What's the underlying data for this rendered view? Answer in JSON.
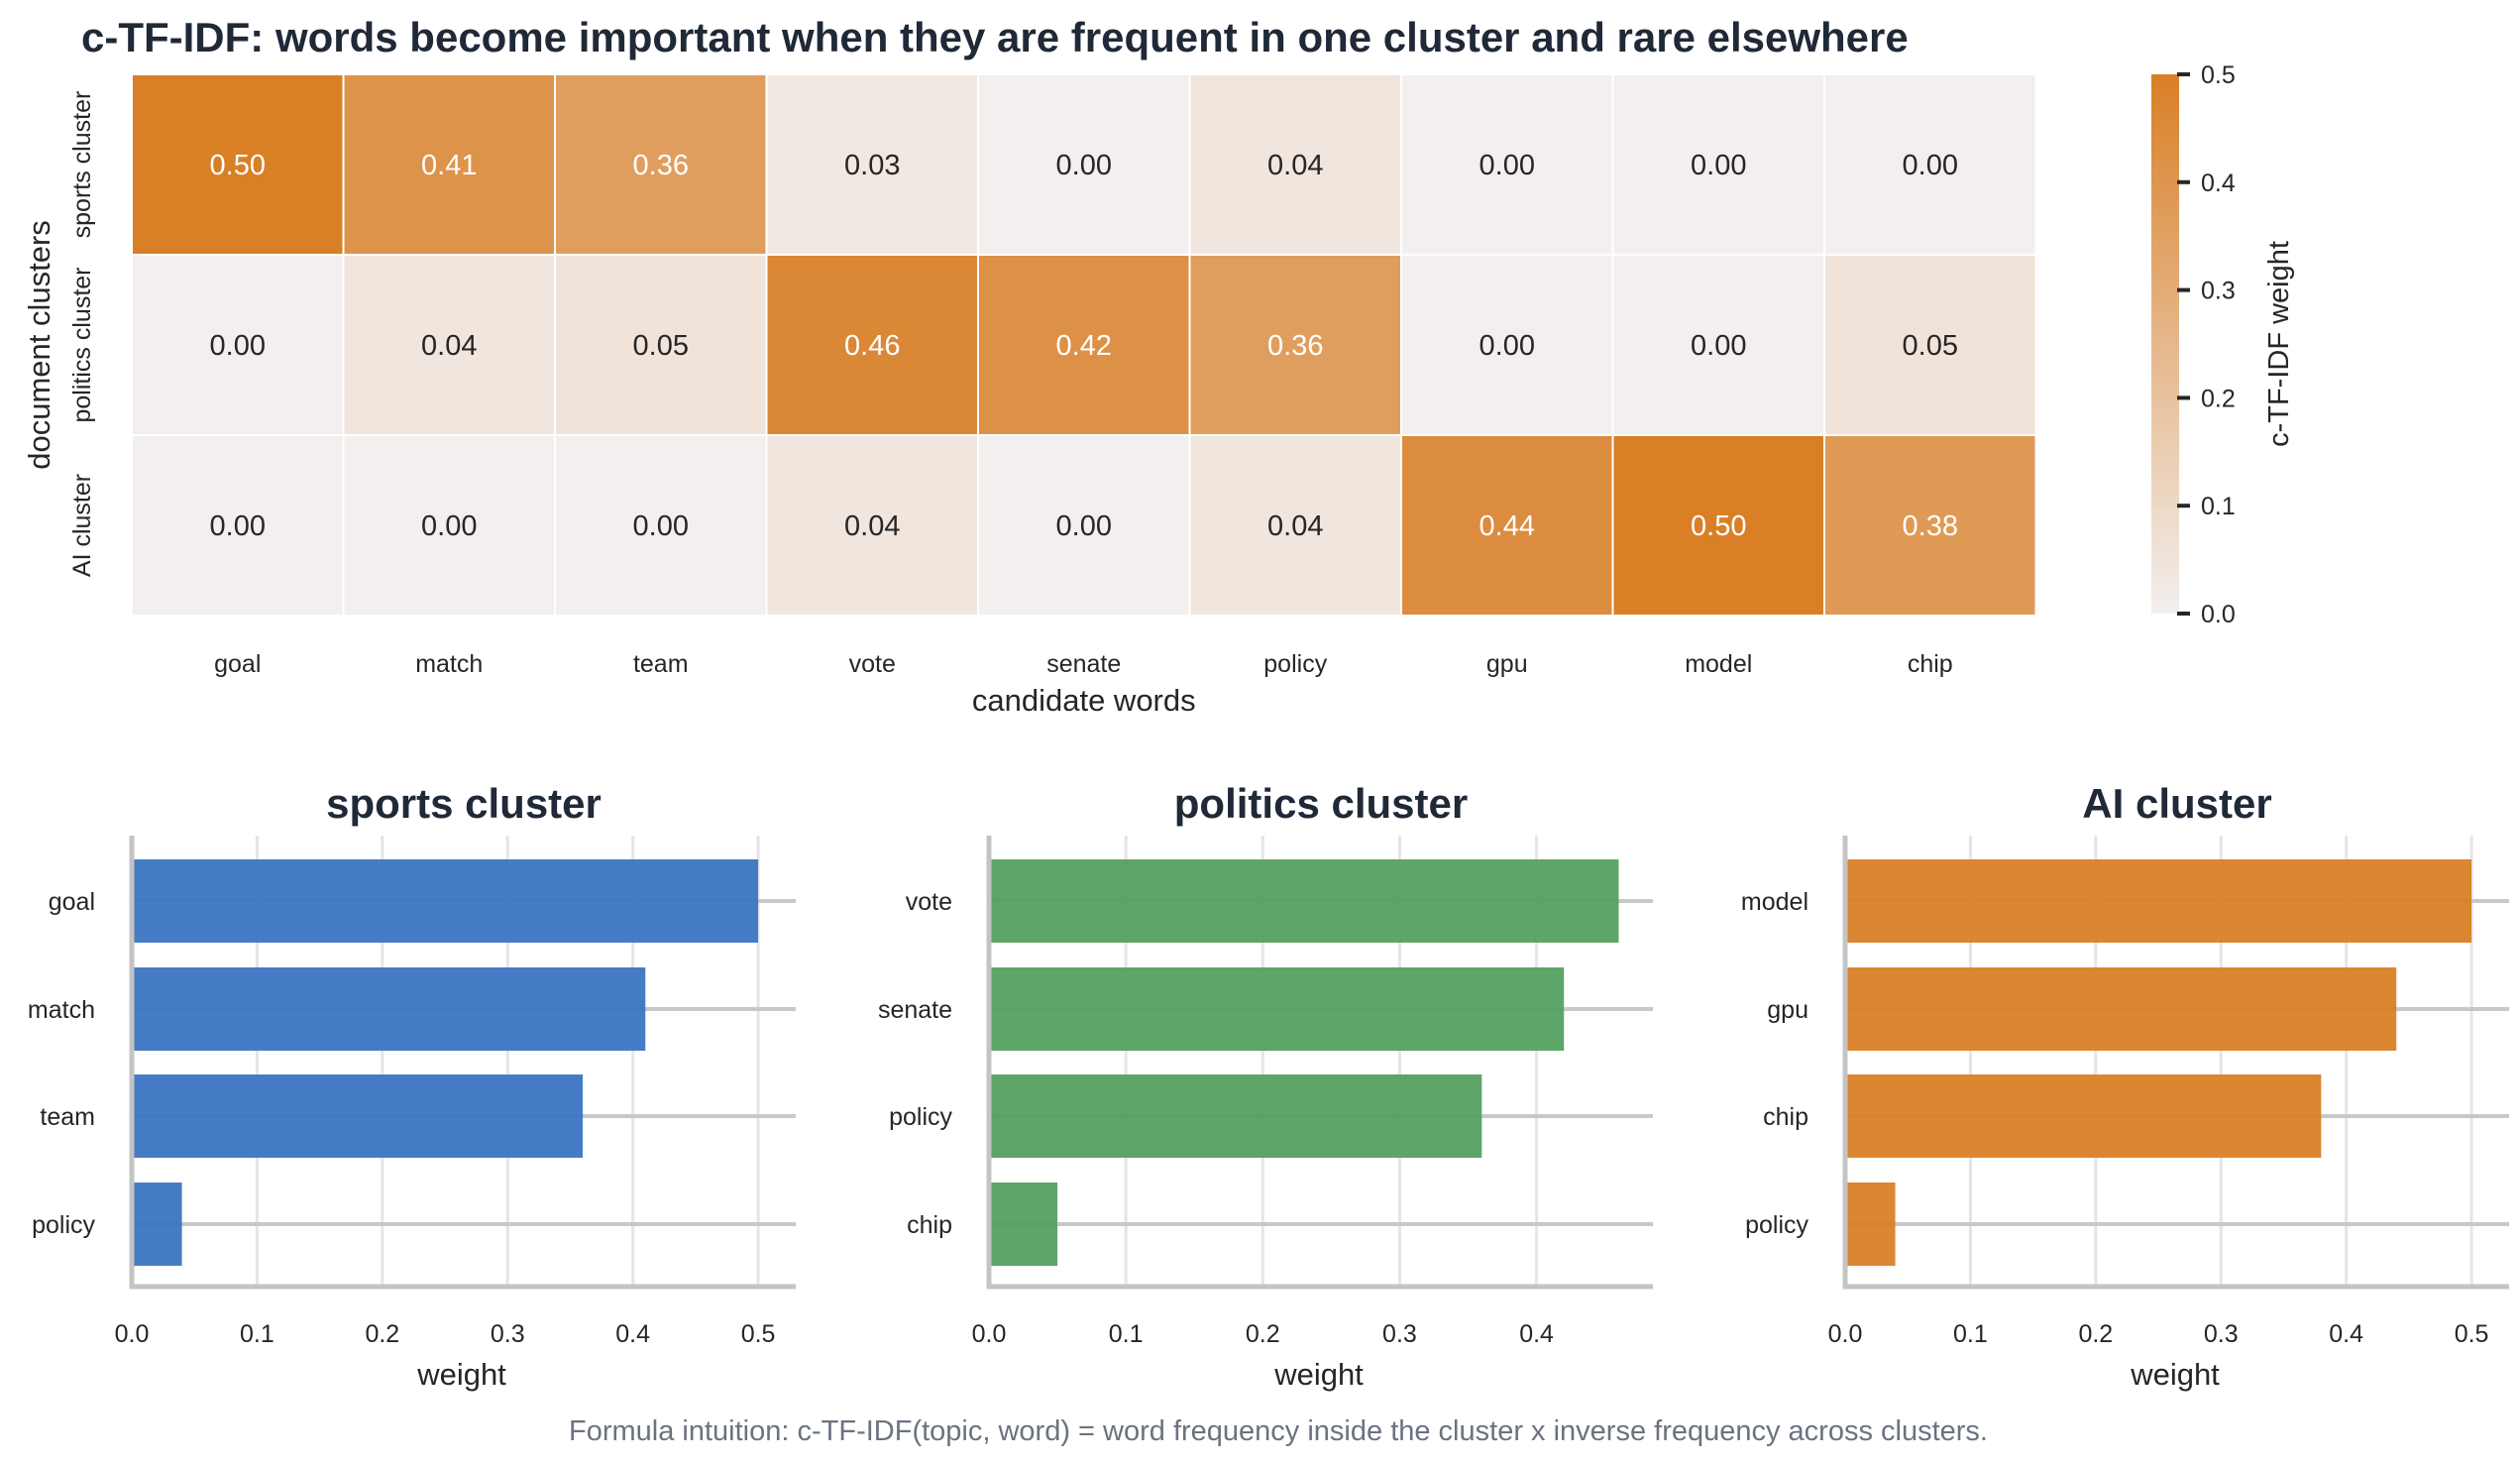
{
  "title": "c-TF-IDF: words become important when they are frequent in one cluster and rare elsewhere",
  "footer": "Formula intuition: c-TF-IDF(topic, word) = word frequency inside the cluster x inverse frequency across clusters.",
  "colors": {
    "heat_low": "#f2efee",
    "heat_high": "#d97f26",
    "sports": "#3c75c3",
    "politics": "#55a060",
    "ai": "#d97f26",
    "title": "#1f2937",
    "footer": "#6b7280"
  },
  "chart_data": [
    {
      "type": "heatmap",
      "xlabel": "candidate words",
      "ylabel": "document clusters",
      "x": [
        "goal",
        "match",
        "team",
        "vote",
        "senate",
        "policy",
        "gpu",
        "model",
        "chip"
      ],
      "y": [
        "sports cluster",
        "politics cluster",
        "AI cluster"
      ],
      "values": [
        [
          0.5,
          0.41,
          0.36,
          0.03,
          0.0,
          0.04,
          0.0,
          0.0,
          0.0
        ],
        [
          0.0,
          0.04,
          0.05,
          0.46,
          0.42,
          0.36,
          0.0,
          0.0,
          0.05
        ],
        [
          0.0,
          0.0,
          0.0,
          0.04,
          0.0,
          0.04,
          0.44,
          0.5,
          0.38
        ]
      ],
      "colorbar": {
        "label": "c-TF-IDF weight",
        "range": [
          0,
          0.5
        ],
        "ticks": [
          "0.0",
          "0.1",
          "0.2",
          "0.3",
          "0.4",
          "0.5"
        ]
      }
    },
    {
      "type": "bar",
      "orientation": "horizontal",
      "title": "sports cluster",
      "categories": [
        "goal",
        "match",
        "team",
        "policy"
      ],
      "values": [
        0.5,
        0.41,
        0.36,
        0.04
      ],
      "xlabel": "weight",
      "xlim": [
        0,
        0.53
      ],
      "xticks": [
        "0.0",
        "0.1",
        "0.2",
        "0.3",
        "0.4",
        "0.5"
      ],
      "color_key": "sports"
    },
    {
      "type": "bar",
      "orientation": "horizontal",
      "title": "politics cluster",
      "categories": [
        "vote",
        "senate",
        "policy",
        "chip"
      ],
      "values": [
        0.46,
        0.42,
        0.36,
        0.05
      ],
      "xlabel": "weight",
      "xlim": [
        0,
        0.485
      ],
      "xticks": [
        "0.0",
        "0.1",
        "0.2",
        "0.3",
        "0.4"
      ],
      "color_key": "politics"
    },
    {
      "type": "bar",
      "orientation": "horizontal",
      "title": "AI cluster",
      "categories": [
        "model",
        "gpu",
        "chip",
        "policy"
      ],
      "values": [
        0.5,
        0.44,
        0.38,
        0.04
      ],
      "xlabel": "weight",
      "xlim": [
        0,
        0.53
      ],
      "xticks": [
        "0.0",
        "0.1",
        "0.2",
        "0.3",
        "0.4",
        "0.5"
      ],
      "color_key": "ai"
    }
  ]
}
